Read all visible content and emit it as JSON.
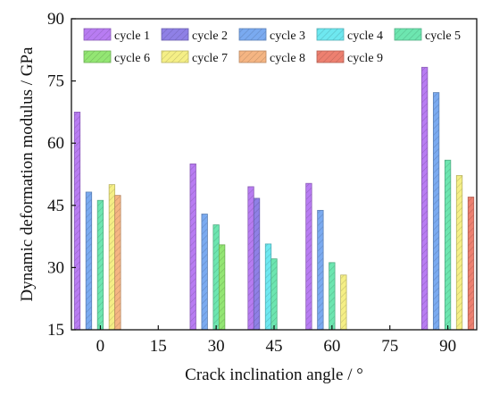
{
  "chart_data": {
    "type": "bar",
    "title": "",
    "xlabel": "Crack inclination angle / °",
    "ylabel": "Dynamic deformation modulus / GPa",
    "categories": [
      "0",
      "15",
      "30",
      "45",
      "60",
      "75",
      "90"
    ],
    "x_ticks": [
      "0",
      "15",
      "30",
      "45",
      "60",
      "75",
      "90"
    ],
    "y_ticks": [
      "15",
      "30",
      "45",
      "60",
      "75",
      "90"
    ],
    "ylim": [
      15,
      90
    ],
    "grid": false,
    "legend_position": "top",
    "series": [
      {
        "name": "cycle 1",
        "color": "#b87cf2",
        "values": [
          67.5,
          null,
          55.0,
          49.5,
          50.3,
          null,
          78.3
        ]
      },
      {
        "name": "cycle 2",
        "color": "#8f80e6",
        "values": [
          null,
          null,
          null,
          46.7,
          null,
          null,
          null
        ]
      },
      {
        "name": "cycle 3",
        "color": "#7aaaf0",
        "values": [
          48.2,
          null,
          42.9,
          null,
          43.8,
          null,
          72.2
        ]
      },
      {
        "name": "cycle 4",
        "color": "#6ee8f0",
        "values": [
          null,
          null,
          null,
          35.7,
          null,
          null,
          null
        ]
      },
      {
        "name": "cycle 5",
        "color": "#6de6b0",
        "values": [
          46.2,
          null,
          40.3,
          32.1,
          31.2,
          null,
          55.9
        ]
      },
      {
        "name": "cycle 6",
        "color": "#93e673",
        "values": [
          null,
          null,
          35.5,
          null,
          null,
          null,
          null
        ]
      },
      {
        "name": "cycle 7",
        "color": "#f5ef86",
        "values": [
          50.0,
          null,
          null,
          null,
          28.2,
          null,
          52.2
        ]
      },
      {
        "name": "cycle 8",
        "color": "#f5b583",
        "values": [
          47.4,
          null,
          null,
          null,
          null,
          null,
          null
        ]
      },
      {
        "name": "cycle 9",
        "color": "#ed8070",
        "values": [
          null,
          null,
          null,
          null,
          null,
          null,
          47.0
        ]
      }
    ]
  }
}
